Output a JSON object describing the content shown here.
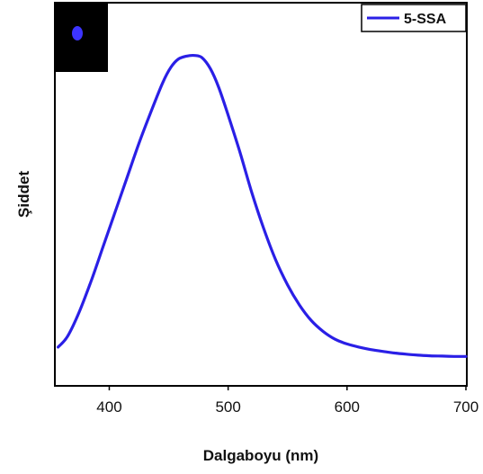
{
  "chart_data": {
    "type": "line",
    "title": "",
    "xlabel": "Dalgaboyu (nm)",
    "ylabel": "Şiddet",
    "xlim": [
      355,
      700
    ],
    "ylim": [
      0,
      1
    ],
    "xticks": [
      400,
      500,
      600,
      700
    ],
    "xtick_labels": [
      "400",
      "500",
      "600",
      "700"
    ],
    "yticks_shown": false,
    "grid": false,
    "legend_position": "top-right",
    "series": [
      {
        "name": "5-SSA",
        "color": "#2a1fe6",
        "x": [
          357,
          365,
          375,
          385,
          395,
          405,
          415,
          425,
          435,
          445,
          452,
          458,
          465,
          472,
          478,
          485,
          492,
          500,
          510,
          520,
          530,
          540,
          550,
          560,
          570,
          580,
          590,
          600,
          610,
          620,
          630,
          640,
          650,
          660,
          670,
          680,
          690,
          700
        ],
        "values": [
          0.035,
          0.07,
          0.15,
          0.25,
          0.36,
          0.47,
          0.58,
          0.69,
          0.79,
          0.885,
          0.935,
          0.96,
          0.97,
          0.972,
          0.965,
          0.93,
          0.87,
          0.78,
          0.66,
          0.53,
          0.415,
          0.315,
          0.235,
          0.17,
          0.12,
          0.085,
          0.06,
          0.045,
          0.035,
          0.027,
          0.021,
          0.016,
          0.012,
          0.009,
          0.007,
          0.006,
          0.005,
          0.005
        ]
      }
    ]
  },
  "inset": {
    "icon": "glowing-blue-dot-icon",
    "background": "#000000",
    "dot_color": "#3d34ff"
  }
}
